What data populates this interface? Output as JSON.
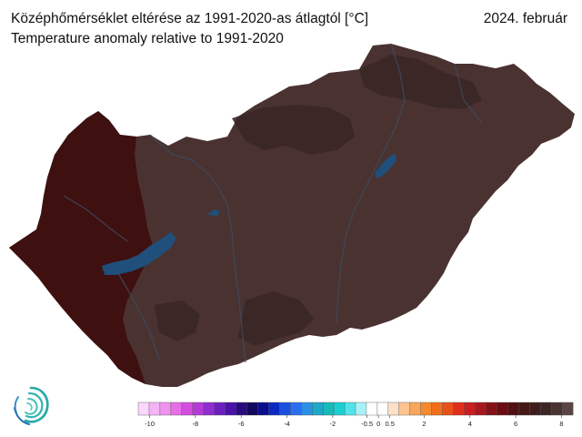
{
  "header": {
    "title": "Középhőmérséklet eltérése az 1991-2020-as átlagtól [°C]",
    "subtitle": "Temperature anomaly relative to 1991-2020",
    "date": "2024. február"
  },
  "colors": {
    "anomaly_dominant": "#4a3231",
    "anomaly_warmer_west": "#3e0f0f",
    "anomaly_dark_patches": "#3a2625",
    "lake_water": "#1f4f7a",
    "rivers": "#3d4a5c"
  },
  "colorbar": {
    "colors": [
      "#fcd6fc",
      "#f5b3f5",
      "#ef92ef",
      "#e56fe6",
      "#d44ede",
      "#b43bd6",
      "#8f2dd0",
      "#6b1fbf",
      "#4a12a6",
      "#2a0a7f",
      "#12085e",
      "#0a0e8f",
      "#0c2ac0",
      "#1a4fe0",
      "#2b6ef0",
      "#2a8fe6",
      "#1fa7c9",
      "#18b9b9",
      "#1ccfd0",
      "#52e3ea",
      "#a8f2f7",
      "#ffffff",
      "#ffffff",
      "#fde0c8",
      "#fbc490",
      "#f7a65b",
      "#f48a2d",
      "#ef6f1a",
      "#e9501a",
      "#df2f1c",
      "#c81e20",
      "#a61820",
      "#861018",
      "#6a0c12",
      "#521013",
      "#451716",
      "#3d1e1c",
      "#3a2625",
      "#4a3231",
      "#5b4544"
    ],
    "tick_labels": [
      "-10",
      "-8",
      "-6",
      "-4",
      "-2",
      "-0.5",
      "0",
      "0.5",
      "2",
      "4",
      "6",
      "8"
    ],
    "tick_values": [
      -10,
      -8,
      -6,
      -4,
      -2,
      -0.5,
      0,
      0.5,
      2,
      4,
      6,
      8
    ],
    "range": [
      -10.5,
      8.5
    ]
  },
  "logo": {
    "name": "swirl-logo-icon"
  }
}
